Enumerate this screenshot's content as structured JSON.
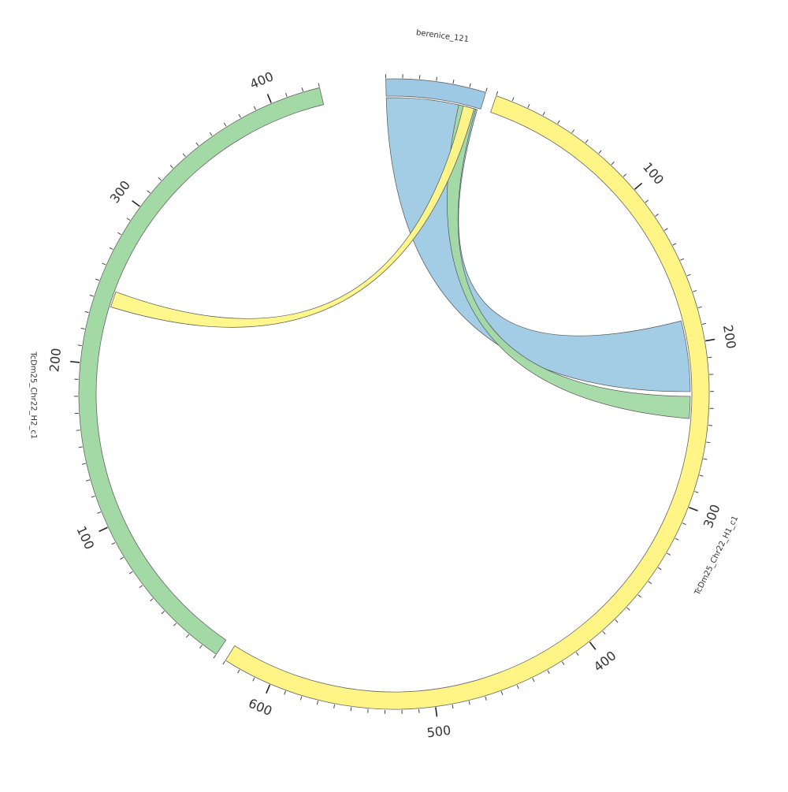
{
  "diagram": {
    "type": "chord",
    "segments": [
      {
        "name": "berenice_121",
        "length": 60,
        "color": "#9ec9e4",
        "tick_step": 10,
        "major_ticks": []
      },
      {
        "name": "TcDm25_Chr22_H1_c1",
        "length": 630,
        "color": "#fff586",
        "tick_step": 10,
        "major_ticks": [
          100,
          200,
          300,
          400,
          500,
          600
        ]
      },
      {
        "name": "TcDm25_Chr22_H2_c1",
        "length": 430,
        "color": "#a3d9a5",
        "tick_step": 10,
        "major_ticks": [
          100,
          200,
          300,
          400
        ]
      }
    ],
    "links": [
      {
        "source": {
          "segment": "berenice_121",
          "start": 0,
          "end": 58
        },
        "target": {
          "segment": "TcDm25_Chr22_H1_c1",
          "start": 185,
          "end": 230
        },
        "color": "#9ec9e4"
      },
      {
        "source": {
          "segment": "berenice_121",
          "start": 46,
          "end": 57
        },
        "target": {
          "segment": "TcDm25_Chr22_H1_c1",
          "start": 233,
          "end": 247
        },
        "color": "#a3d9a5"
      },
      {
        "source": {
          "segment": "berenice_121",
          "start": 49,
          "end": 56
        },
        "target": {
          "segment": "TcDm25_Chr22_H2_c1",
          "start": 237,
          "end": 247
        },
        "color": "#fff586"
      }
    ]
  }
}
